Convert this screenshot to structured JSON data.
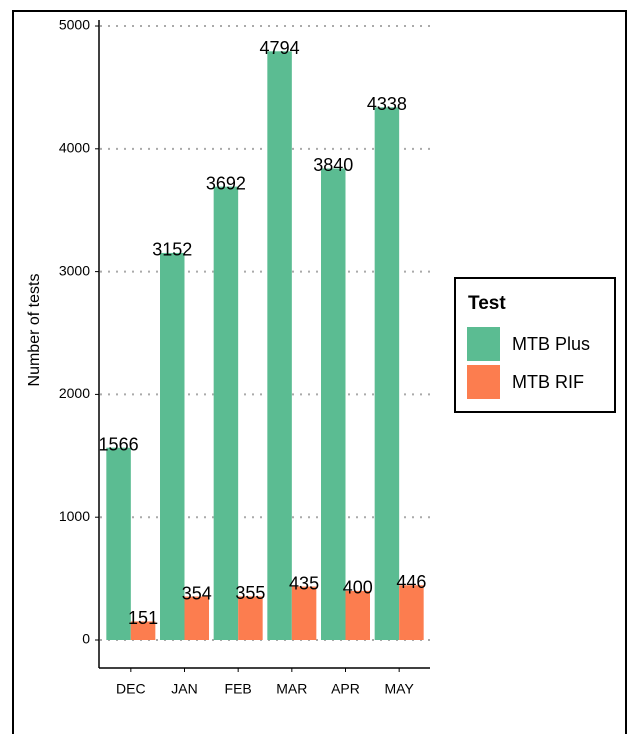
{
  "chart_data": {
    "type": "bar",
    "y_label": "Number of tests",
    "categories": [
      "DEC",
      "JAN",
      "FEB",
      "MAR",
      "APR",
      "MAY"
    ],
    "series": [
      {
        "name": "MTB Plus",
        "color": "#5bbc92",
        "values": [
          1566,
          3152,
          3692,
          4794,
          3840,
          4338
        ]
      },
      {
        "name": "MTB RIF",
        "color": "#fc7d4f",
        "values": [
          151,
          354,
          355,
          435,
          400,
          446
        ]
      }
    ],
    "ylim": [
      -228,
      5049
    ],
    "yticks": [
      0,
      1000,
      2000,
      3000,
      4000,
      5000
    ],
    "grid": true,
    "legend_title": "Test",
    "legend": "right"
  }
}
